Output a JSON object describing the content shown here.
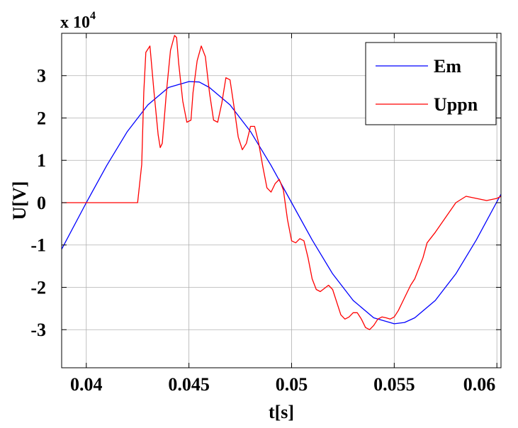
{
  "chart_data": {
    "type": "line",
    "title": "",
    "xlabel": "t[s]",
    "ylabel": "U[V]",
    "y_exponent_label": "x 10",
    "y_exponent_power": "4",
    "y_multiplier": 10000,
    "xlim": [
      0.0388,
      0.0602
    ],
    "ylim": [
      -3.9,
      4.0
    ],
    "x_ticks": [
      0.04,
      0.045,
      0.05,
      0.055,
      0.06
    ],
    "x_tick_labels": [
      "0.04",
      "0.045",
      "0.05",
      "0.055",
      "0.06"
    ],
    "y_ticks": [
      -3,
      -2,
      -1,
      0,
      1,
      2,
      3
    ],
    "y_tick_labels": [
      "-3",
      "-2",
      "-1",
      "0",
      "1",
      "2",
      "3"
    ],
    "grid": true,
    "legend_position": "top-right",
    "series": [
      {
        "name": "Em",
        "color": "#0000ff",
        "x": [
          0.0388,
          0.04,
          0.041,
          0.042,
          0.043,
          0.044,
          0.045,
          0.0455,
          0.046,
          0.047,
          0.048,
          0.049,
          0.05,
          0.051,
          0.052,
          0.053,
          0.054,
          0.055,
          0.0555,
          0.056,
          0.057,
          0.058,
          0.059,
          0.0602
        ],
        "y": [
          -1.1,
          0.0,
          0.88,
          1.68,
          2.31,
          2.72,
          2.86,
          2.85,
          2.72,
          2.31,
          1.68,
          0.88,
          0.0,
          -0.88,
          -1.68,
          -2.31,
          -2.72,
          -2.86,
          -2.83,
          -2.72,
          -2.31,
          -1.68,
          -0.88,
          0.2
        ]
      },
      {
        "name": "Uppn",
        "color": "#ff0000",
        "x": [
          0.0388,
          0.0422,
          0.0425,
          0.0427,
          0.0428,
          0.0429,
          0.0431,
          0.0433,
          0.0435,
          0.0436,
          0.0437,
          0.0439,
          0.0441,
          0.0443,
          0.0444,
          0.0445,
          0.0447,
          0.0449,
          0.0451,
          0.0452,
          0.0454,
          0.0456,
          0.0458,
          0.046,
          0.0462,
          0.0464,
          0.0466,
          0.0468,
          0.047,
          0.0472,
          0.0474,
          0.0476,
          0.0478,
          0.048,
          0.0482,
          0.0484,
          0.0486,
          0.0488,
          0.049,
          0.0492,
          0.0494,
          0.0496,
          0.0498,
          0.05,
          0.0502,
          0.0504,
          0.0506,
          0.0508,
          0.051,
          0.0512,
          0.0514,
          0.0518,
          0.052,
          0.0522,
          0.0524,
          0.0526,
          0.0528,
          0.053,
          0.0532,
          0.0534,
          0.0536,
          0.0538,
          0.054,
          0.0542,
          0.0544,
          0.0546,
          0.0548,
          0.055,
          0.0552,
          0.0554,
          0.0556,
          0.0558,
          0.056,
          0.0562,
          0.0564,
          0.0566,
          0.057,
          0.0575,
          0.058,
          0.0585,
          0.059,
          0.0595,
          0.06,
          0.0602
        ],
        "y": [
          0.0,
          0.0,
          0.0,
          0.9,
          2.6,
          3.55,
          3.7,
          2.6,
          1.6,
          1.3,
          1.4,
          2.6,
          3.6,
          3.95,
          3.9,
          3.3,
          2.4,
          1.9,
          1.95,
          2.6,
          3.35,
          3.7,
          3.45,
          2.6,
          1.95,
          1.9,
          2.35,
          2.95,
          2.9,
          2.25,
          1.55,
          1.25,
          1.4,
          1.8,
          1.8,
          1.4,
          0.85,
          0.35,
          0.25,
          0.45,
          0.55,
          0.3,
          -0.4,
          -0.9,
          -0.95,
          -0.85,
          -0.9,
          -1.3,
          -1.8,
          -2.05,
          -2.1,
          -1.95,
          -2.05,
          -2.35,
          -2.65,
          -2.75,
          -2.7,
          -2.6,
          -2.6,
          -2.75,
          -2.95,
          -3.0,
          -2.9,
          -2.75,
          -2.7,
          -2.72,
          -2.75,
          -2.7,
          -2.55,
          -2.35,
          -2.15,
          -1.95,
          -1.8,
          -1.55,
          -1.3,
          -0.95,
          -0.7,
          -0.35,
          0.0,
          0.15,
          0.1,
          0.05,
          0.1,
          0.15
        ]
      }
    ]
  }
}
